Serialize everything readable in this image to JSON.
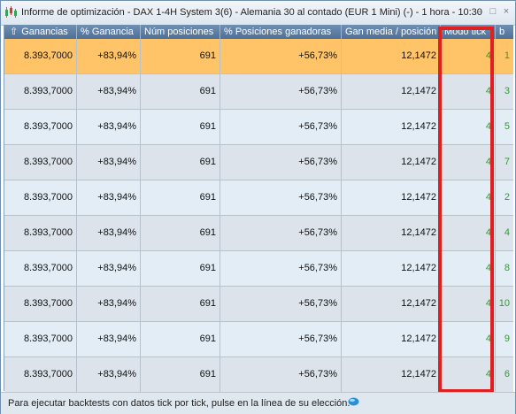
{
  "window": {
    "title": "Informe de optimización - DAX 1-4H System 3(6) - Alemania 30 al contado (EUR 1 Mini) (-) - 1 hora - 10:30",
    "minimize_glyph": "–",
    "maximize_glyph": "□",
    "close_glyph": "×",
    "icon": "candlestick-chart-icon"
  },
  "table": {
    "columns": [
      {
        "label": "Ganancias",
        "sort_icon": "⇧"
      },
      {
        "label": "% Ganancia"
      },
      {
        "label": "Núm posiciones"
      },
      {
        "label": "% Posiciones ganadoras"
      },
      {
        "label": "Gan media / posición"
      },
      {
        "label": "Modo tick"
      },
      {
        "label": "b"
      }
    ],
    "rows": [
      [
        "8.393,7000",
        "+83,94%",
        "691",
        "+56,73%",
        "12,1472",
        "4",
        "1"
      ],
      [
        "8.393,7000",
        "+83,94%",
        "691",
        "+56,73%",
        "12,1472",
        "4",
        "3"
      ],
      [
        "8.393,7000",
        "+83,94%",
        "691",
        "+56,73%",
        "12,1472",
        "4",
        "5"
      ],
      [
        "8.393,7000",
        "+83,94%",
        "691",
        "+56,73%",
        "12,1472",
        "4",
        "7"
      ],
      [
        "8.393,7000",
        "+83,94%",
        "691",
        "+56,73%",
        "12,1472",
        "4",
        "2"
      ],
      [
        "8.393,7000",
        "+83,94%",
        "691",
        "+56,73%",
        "12,1472",
        "4",
        "4"
      ],
      [
        "8.393,7000",
        "+83,94%",
        "691",
        "+56,73%",
        "12,1472",
        "4",
        "8"
      ],
      [
        "8.393,7000",
        "+83,94%",
        "691",
        "+56,73%",
        "12,1472",
        "4",
        "10"
      ],
      [
        "8.393,7000",
        "+83,94%",
        "691",
        "+56,73%",
        "12,1472",
        "4",
        "9"
      ],
      [
        "8.393,7000",
        "+83,94%",
        "691",
        "+56,73%",
        "12,1472",
        "4",
        "6"
      ]
    ],
    "selected_row": 0
  },
  "status": {
    "text": "Para ejecutar backtests con datos tick por tick, pulse en la línea de su elección.",
    "icon": "info-bubble-icon"
  },
  "colors": {
    "selected_row": "#ffc468",
    "header": "#5a7ca5",
    "highlight_box": "#e02020",
    "green_values": "#2e9e2e"
  }
}
